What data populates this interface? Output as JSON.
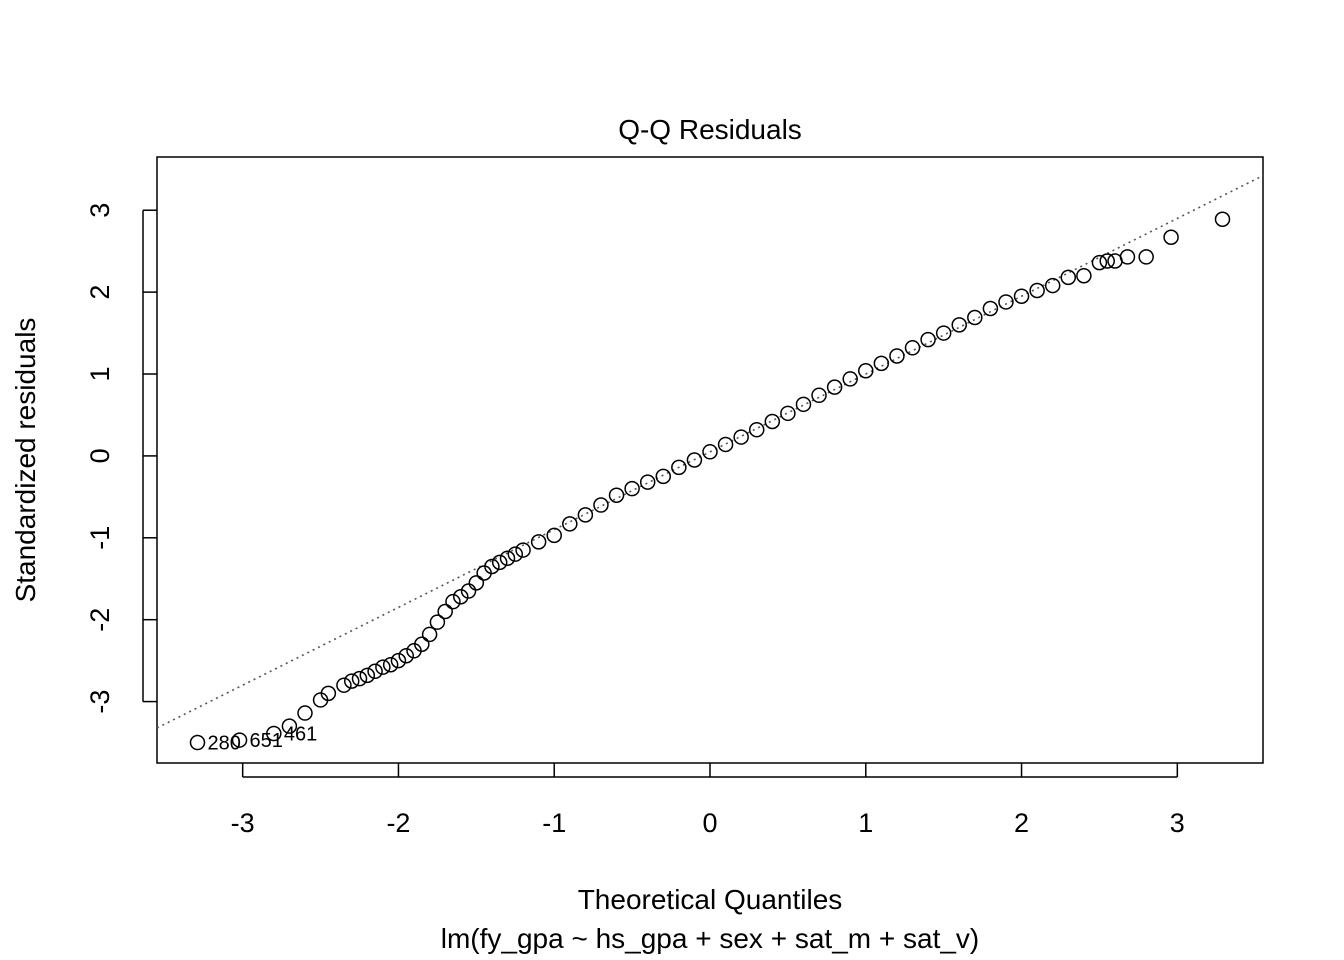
{
  "chart_data": {
    "type": "scatter",
    "title": "Q-Q Residuals",
    "xlabel": "Theoretical Quantiles",
    "ylabel": "Standardized residuals",
    "subtitle": "lm(fy_gpa ~ hs_gpa + sex + sat_m + sat_v)",
    "xlim": [
      -3.55,
      3.55
    ],
    "ylim": [
      -3.75,
      3.65
    ],
    "x_ticks": [
      -3,
      -2,
      -1,
      0,
      1,
      2,
      3
    ],
    "y_ticks": [
      -3,
      -2,
      -1,
      0,
      1,
      2,
      3
    ],
    "x_tick_labels": [
      "-3",
      "-2",
      "-1",
      "0",
      "1",
      "2",
      "3"
    ],
    "y_tick_labels": [
      "-3",
      "-2",
      "-1",
      "0",
      "1",
      "2",
      "3"
    ],
    "reference_line": {
      "style": "dotted",
      "intercept": 0.05,
      "slope": 0.95
    },
    "labeled_points": [
      {
        "label": "280",
        "x": -3.29,
        "y": -3.5
      },
      {
        "label": "651",
        "x": -3.02,
        "y": -3.47
      },
      {
        "label": "461",
        "x": -2.8,
        "y": -3.39
      }
    ],
    "x": [
      -3.29,
      -3.02,
      -2.8,
      -2.7,
      -2.6,
      -2.5,
      -2.45,
      -2.35,
      -2.3,
      -2.25,
      -2.2,
      -2.15,
      -2.1,
      -2.05,
      -2.0,
      -1.95,
      -1.9,
      -1.85,
      -1.8,
      -1.75,
      -1.7,
      -1.65,
      -1.6,
      -1.55,
      -1.5,
      -1.45,
      -1.4,
      -1.35,
      -1.3,
      -1.25,
      -1.2,
      -1.1,
      -1.0,
      -0.9,
      -0.8,
      -0.7,
      -0.6,
      -0.5,
      -0.4,
      -0.3,
      -0.2,
      -0.1,
      0.0,
      0.1,
      0.2,
      0.3,
      0.4,
      0.5,
      0.6,
      0.7,
      0.8,
      0.9,
      1.0,
      1.1,
      1.2,
      1.3,
      1.4,
      1.5,
      1.6,
      1.7,
      1.8,
      1.9,
      2.0,
      2.1,
      2.2,
      2.3,
      2.4,
      2.5,
      2.55,
      2.6,
      2.68,
      2.8,
      2.96,
      3.29
    ],
    "y": [
      -3.5,
      -3.47,
      -3.39,
      -3.3,
      -3.14,
      -2.98,
      -2.9,
      -2.8,
      -2.75,
      -2.72,
      -2.68,
      -2.63,
      -2.58,
      -2.55,
      -2.5,
      -2.44,
      -2.38,
      -2.3,
      -2.18,
      -2.03,
      -1.9,
      -1.78,
      -1.72,
      -1.65,
      -1.55,
      -1.43,
      -1.35,
      -1.3,
      -1.25,
      -1.2,
      -1.15,
      -1.05,
      -0.97,
      -0.83,
      -0.72,
      -0.6,
      -0.48,
      -0.4,
      -0.32,
      -0.25,
      -0.14,
      -0.05,
      0.05,
      0.14,
      0.23,
      0.32,
      0.42,
      0.52,
      0.63,
      0.74,
      0.84,
      0.94,
      1.04,
      1.13,
      1.22,
      1.32,
      1.42,
      1.5,
      1.6,
      1.69,
      1.8,
      1.88,
      1.95,
      2.02,
      2.08,
      2.18,
      2.2,
      2.36,
      2.38,
      2.38,
      2.43,
      2.43,
      2.67,
      2.89
    ]
  }
}
